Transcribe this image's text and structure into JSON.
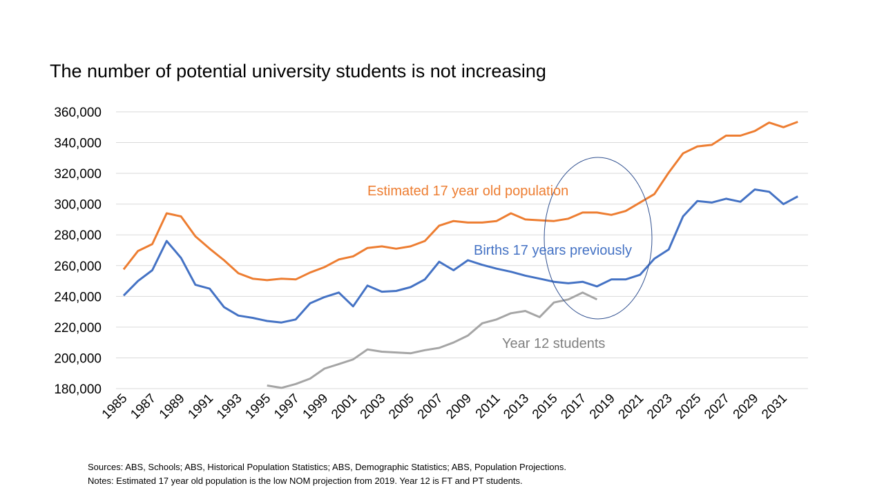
{
  "chart_data": {
    "type": "line",
    "title": "The number of potential university students is not increasing",
    "xlabel": "",
    "ylabel": "",
    "ylim": [
      180000,
      360000
    ],
    "yticks": [
      180000,
      200000,
      220000,
      240000,
      260000,
      280000,
      300000,
      320000,
      340000,
      360000
    ],
    "ytick_labels": [
      "180,000",
      "200,000",
      "220,000",
      "240,000",
      "260,000",
      "280,000",
      "300,000",
      "320,000",
      "340,000",
      "360,000"
    ],
    "xtick_labels": [
      "1985",
      "1987",
      "1989",
      "1991",
      "1993",
      "1995",
      "1997",
      "1999",
      "2001",
      "2003",
      "2005",
      "2007",
      "2009",
      "2011",
      "2013",
      "2015",
      "2017",
      "2019",
      "2021",
      "2023",
      "2025",
      "2027",
      "2029",
      "2031"
    ],
    "grid": true,
    "x": [
      1985,
      1986,
      1987,
      1988,
      1989,
      1990,
      1991,
      1992,
      1993,
      1994,
      1995,
      1996,
      1997,
      1998,
      1999,
      2000,
      2001,
      2002,
      2003,
      2004,
      2005,
      2006,
      2007,
      2008,
      2009,
      2010,
      2011,
      2012,
      2013,
      2014,
      2015,
      2016,
      2017,
      2018,
      2019,
      2020,
      2021,
      2022,
      2023,
      2024,
      2025,
      2026,
      2027,
      2028,
      2029,
      2030,
      2031,
      2032
    ],
    "series": [
      {
        "name": "Estimated 17 year old population",
        "color": "#ED7D31",
        "values": [
          257500,
          269500,
          274000,
          294000,
          292000,
          279000,
          271000,
          263500,
          255000,
          251500,
          250500,
          251500,
          251000,
          255500,
          259000,
          264000,
          266000,
          271500,
          272500,
          271000,
          272500,
          276000,
          286000,
          289000,
          288000,
          288000,
          289000,
          294000,
          290000,
          289500,
          289000,
          290500,
          294500,
          294500,
          293000,
          295500,
          301000,
          306500,
          320500,
          333000,
          337500,
          338500,
          344500,
          344500,
          347500,
          353000,
          350000,
          353500
        ]
      },
      {
        "name": "Births 17 years previously",
        "color": "#4472C4",
        "values": [
          240500,
          250000,
          257000,
          276000,
          265000,
          247500,
          245000,
          233000,
          227500,
          226000,
          224000,
          223000,
          225000,
          235500,
          239500,
          242500,
          233500,
          247000,
          243000,
          243500,
          246000,
          251000,
          262500,
          257000,
          263500,
          260500,
          258000,
          256000,
          253500,
          251500,
          249500,
          248500,
          249500,
          246500,
          251000,
          251000,
          254000,
          264500,
          270500,
          292000,
          302000,
          301000,
          303500,
          301500,
          309500,
          308000,
          300000,
          305000
        ]
      },
      {
        "name": "Year 12 students",
        "color": "#A5A5A5",
        "values": [
          null,
          null,
          null,
          null,
          null,
          null,
          null,
          null,
          null,
          null,
          182000,
          180500,
          183000,
          186500,
          193000,
          196000,
          199000,
          205500,
          204000,
          203500,
          203000,
          205000,
          206500,
          210000,
          214500,
          222500,
          225000,
          229000,
          230500,
          226500,
          236000,
          238000,
          242500,
          238000,
          null,
          null,
          null,
          null,
          null,
          null,
          null,
          null,
          null,
          null,
          null,
          null,
          null,
          null
        ]
      }
    ],
    "annotations": {
      "orange_label": "Estimated 17 year old population",
      "blue_label": "Births 17 years previously",
      "gray_label": "Year 12 students"
    }
  },
  "footer": {
    "sources": "Sources: ABS, Schools; ABS, Historical Population Statistics; ABS, Demographic Statistics; ABS, Population Projections.",
    "notes": "Notes: Estimated 17 year old population is the low NOM projection from 2019. Year 12 is FT and PT students."
  }
}
